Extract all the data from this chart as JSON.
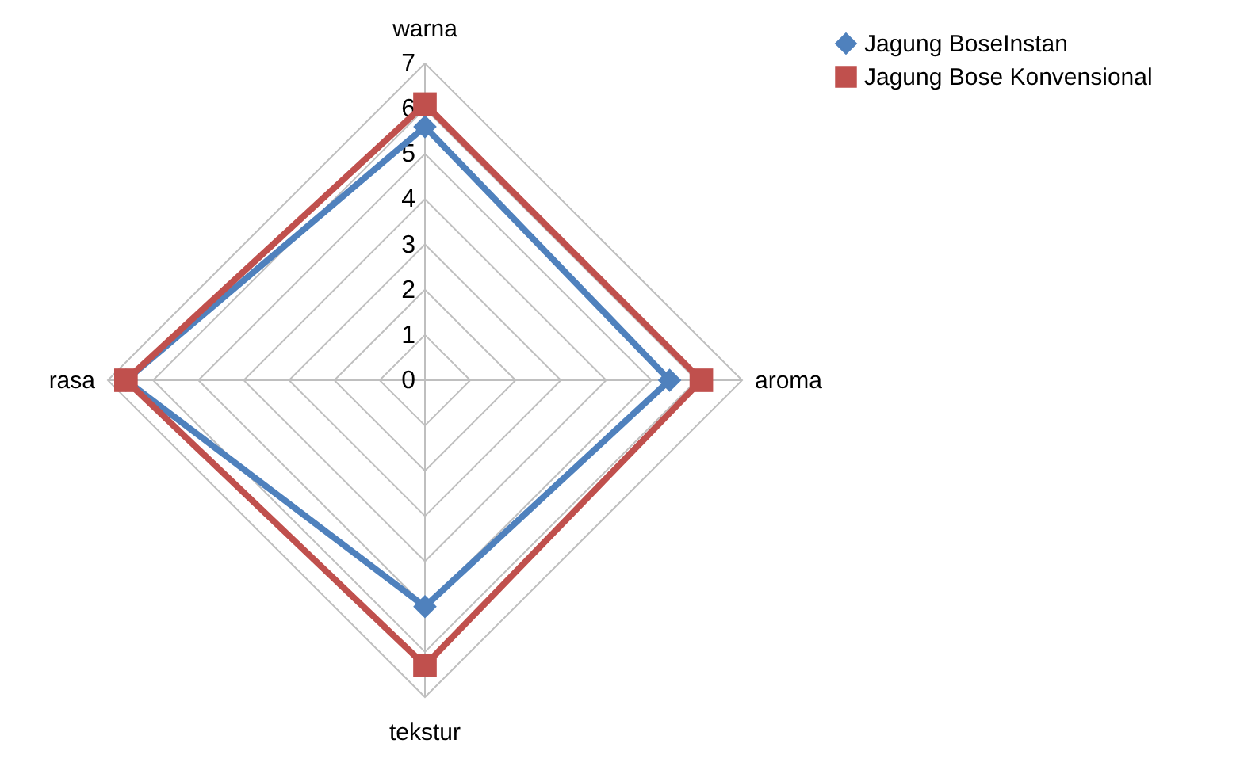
{
  "chart_data": {
    "type": "radar",
    "categories": [
      "warna",
      "aroma",
      "tekstur",
      "rasa"
    ],
    "ylim": [
      0,
      7
    ],
    "yticks": [
      0,
      1,
      2,
      3,
      4,
      5,
      6,
      7
    ],
    "grid": true,
    "legend": "right",
    "series": [
      {
        "name": "Jagung BoseInstan",
        "color": "#4f81bd",
        "marker": "diamond",
        "values": [
          5.6,
          5.4,
          5.0,
          6.6
        ]
      },
      {
        "name": "Jagung Bose Konvensional",
        "color": "#c0504d",
        "marker": "square",
        "values": [
          6.1,
          6.1,
          6.3,
          6.6
        ]
      }
    ]
  }
}
